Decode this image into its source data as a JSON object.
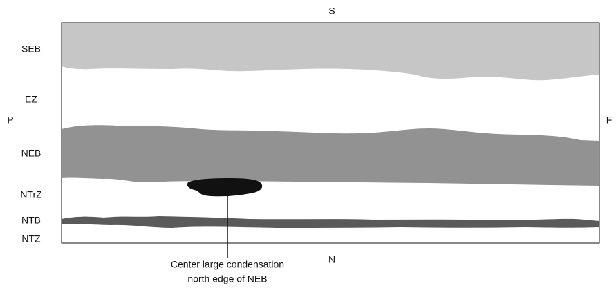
{
  "directions": {
    "south": "S",
    "north": "N",
    "preceding": "P",
    "following": "F"
  },
  "bands": [
    {
      "label": "SEB"
    },
    {
      "label": "EZ"
    },
    {
      "label": "NEB"
    },
    {
      "label": "NTrZ"
    },
    {
      "label": "NTB"
    },
    {
      "label": "NTZ"
    }
  ],
  "annotation": {
    "lines": [
      "Center large condensation",
      "north edge of NEB"
    ]
  }
}
